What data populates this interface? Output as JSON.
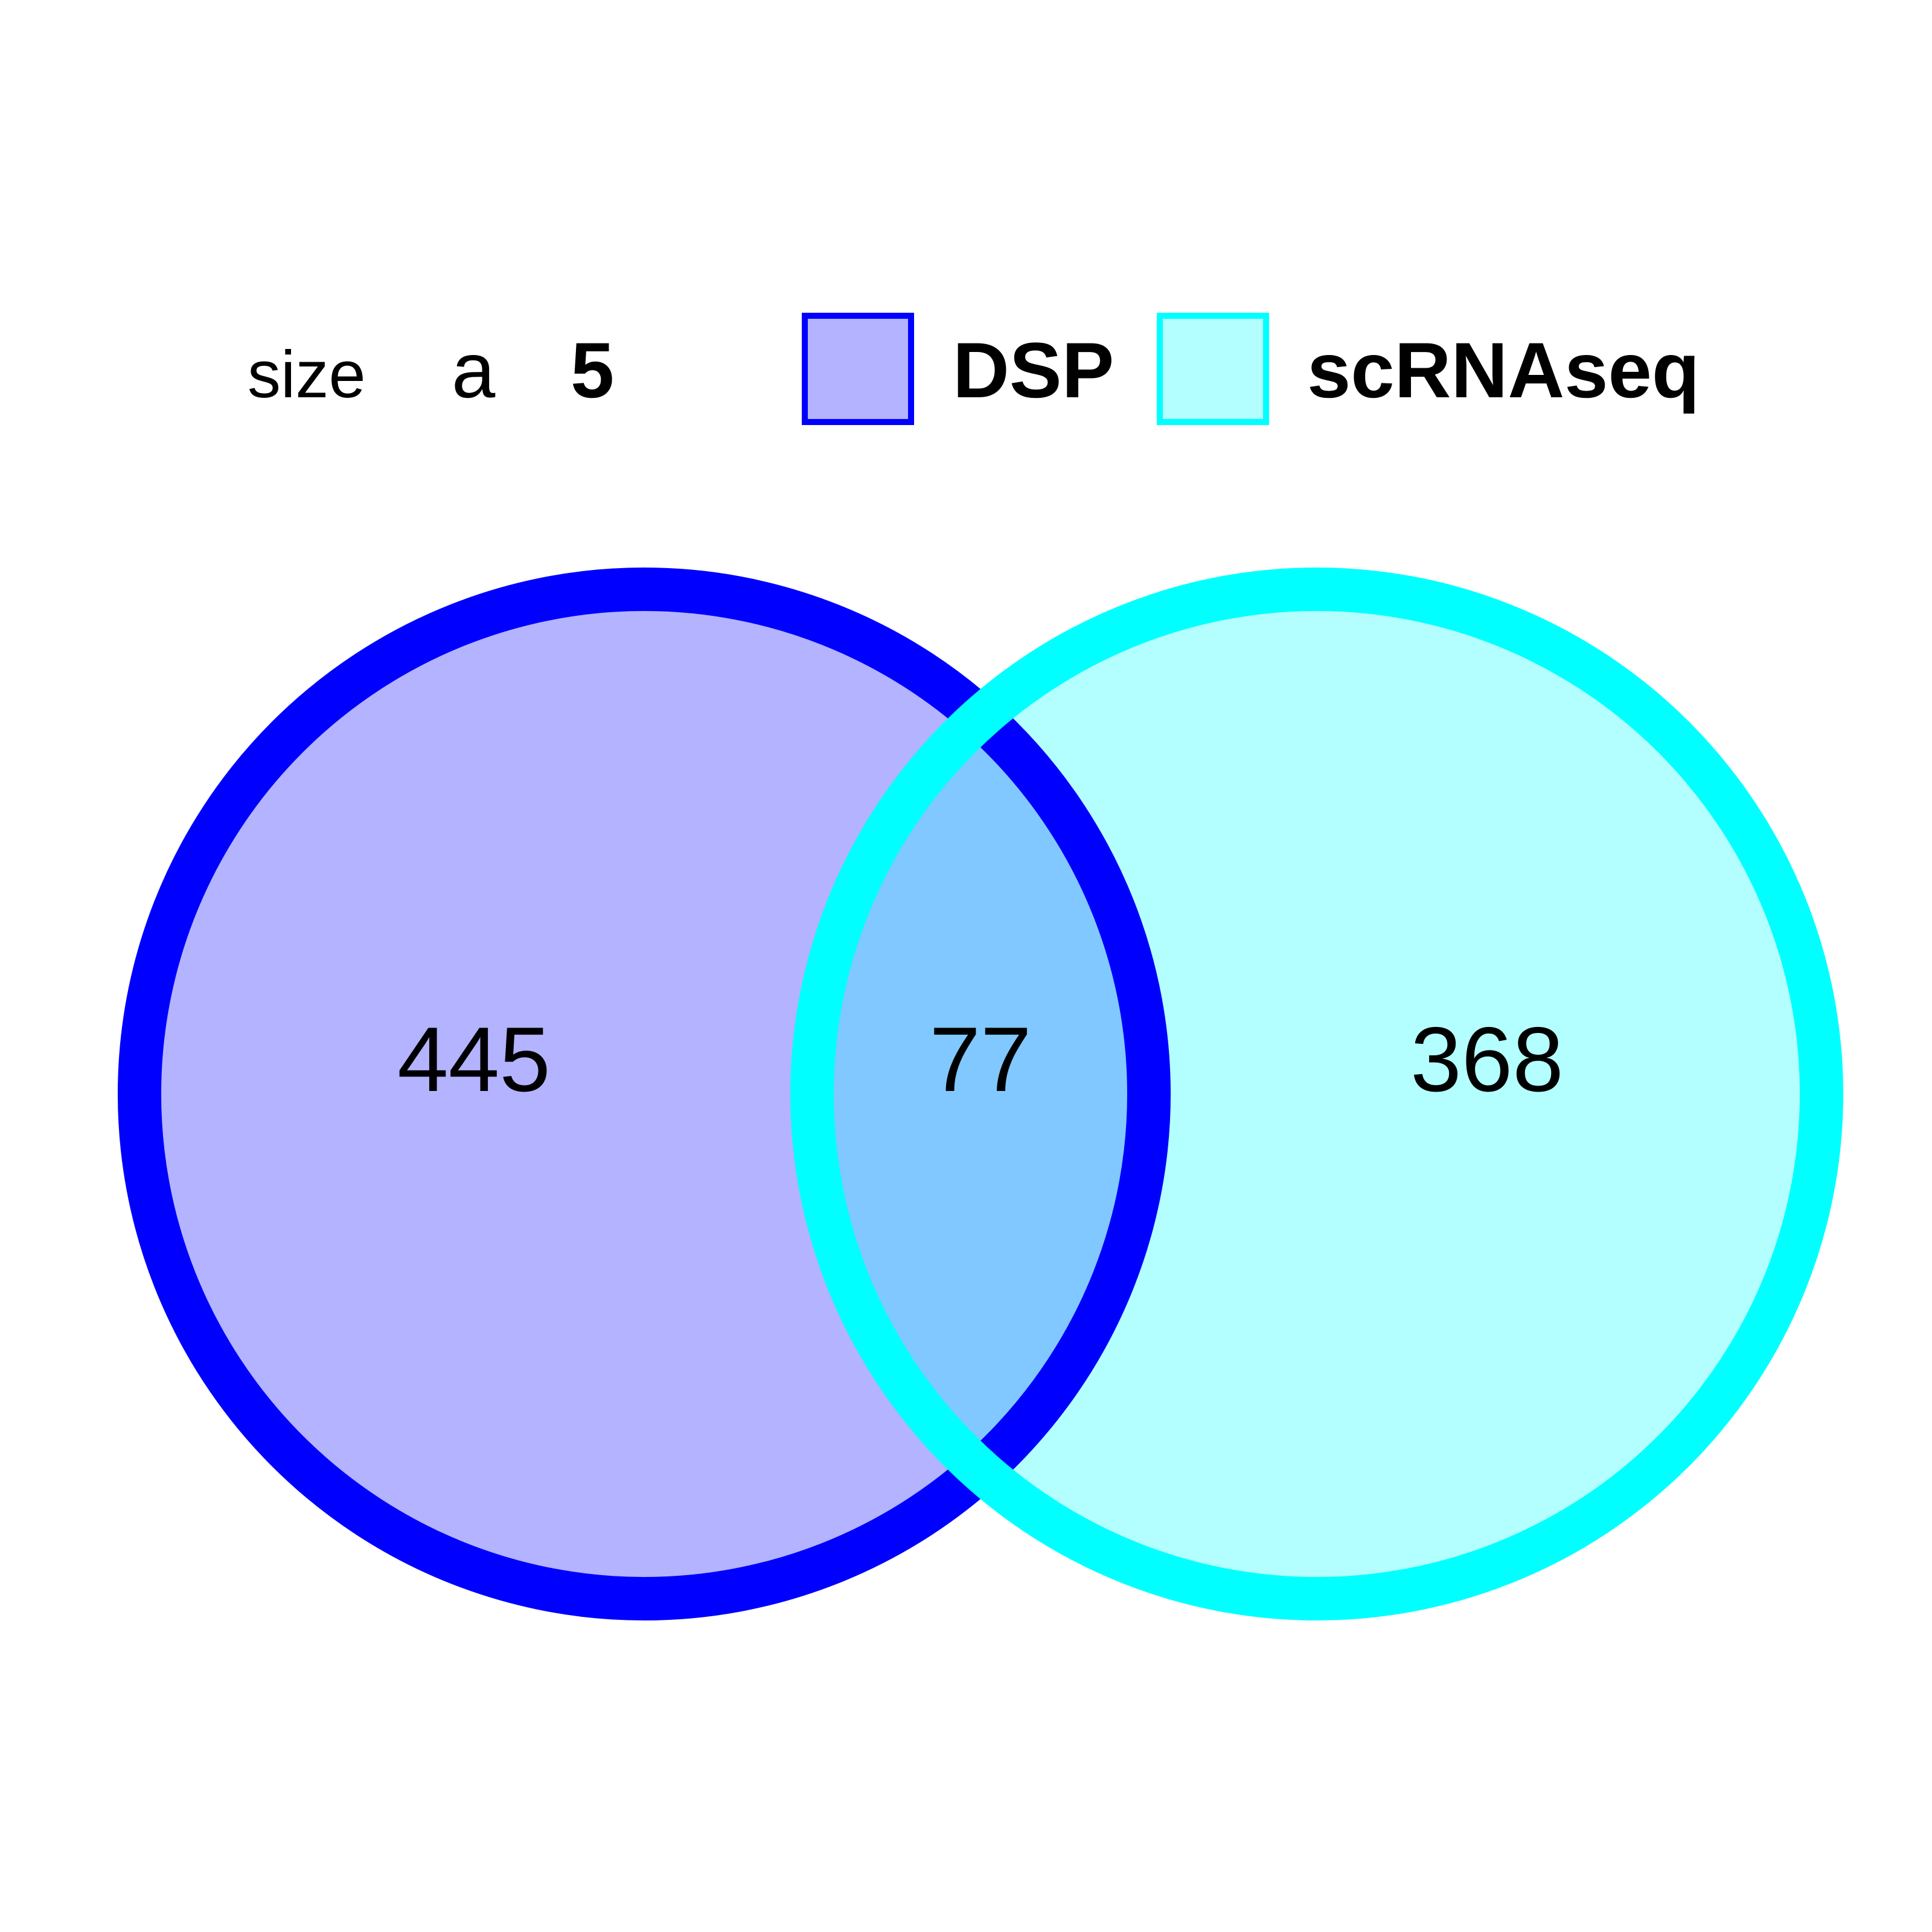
{
  "legend": {
    "size_label": "size",
    "size_symbol": "a",
    "size_value": "5",
    "sets": [
      {
        "name": "DSP",
        "fill": "#b3b3ff",
        "stroke": "#0000ff"
      },
      {
        "name": "scRNAseq",
        "fill": "#b3ffff",
        "stroke": "#00ffff"
      }
    ]
  },
  "venn": {
    "intersection_fill": "#80c8ff",
    "counts": {
      "only_DSP": "445",
      "both": "77",
      "only_scRNAseq": "368"
    }
  }
}
